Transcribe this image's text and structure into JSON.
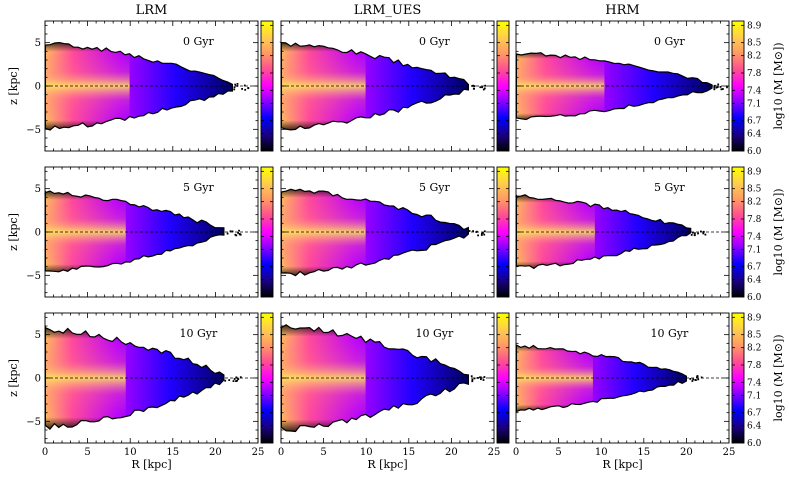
{
  "chart_data": {
    "type": "heatmap",
    "columns": [
      "LRM",
      "LRM_UES",
      "HRM"
    ],
    "rows": [
      "0 Gyr",
      "5 Gyr",
      "10 Gyr"
    ],
    "xlabel": "R [kpc]",
    "ylabel": "z [kpc]",
    "colorbar_label": "log10 (M [M⊙])",
    "colorbar_ticks": [
      "6.0",
      "6.4",
      "6.7",
      "7.1",
      "7.4",
      "7.8",
      "8.2",
      "8.5",
      "8.9"
    ],
    "colorbar_range": [
      6.0,
      9.0
    ],
    "xlim": [
      0,
      25
    ],
    "ylim": [
      -7.5,
      7.5
    ],
    "xticks": [
      "0",
      "5",
      "10",
      "15",
      "20",
      "25"
    ],
    "yticks": [
      "−5",
      "0",
      "5"
    ],
    "colormap": [
      "#000000",
      "#1a0080",
      "#0000ff",
      "#8a00ff",
      "#ff00ff",
      "#ff5090",
      "#ff9966",
      "#ffd04a",
      "#ffff00"
    ],
    "disk_extent_kpc": [
      [
        22,
        22,
        23
      ],
      [
        21,
        22,
        20.5
      ],
      [
        21,
        22,
        20
      ]
    ],
    "disk_halfthickness_kpc": [
      [
        4.5,
        4.5,
        3.5
      ],
      [
        4.2,
        4.5,
        3.8
      ],
      [
        5.2,
        5.5,
        3.4
      ]
    ]
  }
}
